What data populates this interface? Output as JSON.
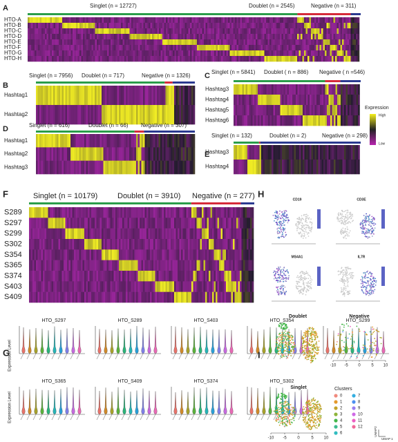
{
  "panels": [
    {
      "label": "A",
      "groups": [
        "Singlet (n = 12727)",
        "Doublet (n = 2545)",
        "Negative (n = 311)"
      ],
      "rows": [
        "HTO-A",
        "HTO-B",
        "HTO-C",
        "HTO-D",
        "HTO-E",
        "HTO-F",
        "HTO-G",
        "HTO-H"
      ]
    },
    {
      "label": "B",
      "groups": [
        "Singlet (n = 7956)",
        "Doublet (n = 717)",
        "Negative (n = 1326)"
      ],
      "rows": [
        "Hashtag1",
        "Hashtag2"
      ]
    },
    {
      "label": "C",
      "groups": [
        "Singlet (n = 5841)",
        "Doublet ( n = 886)",
        "Negative ( n =546)"
      ],
      "rows": [
        "Hashtag3",
        "Hashtag4",
        "Hashtag5",
        "Hashtag6"
      ]
    },
    {
      "label": "D",
      "groups": [
        "Singlet (n = 616)",
        "Doublet (n = 66)",
        "Negative (n = 307)"
      ],
      "rows": [
        "Hashtag1",
        "Hashtag2",
        "Hashtag3"
      ]
    },
    {
      "label": "E",
      "groups": [
        "Singlet (n = 132)",
        "Doublet (n = 2)",
        "Negative (n = 298)"
      ],
      "rows": [
        "Hashtag3",
        "Hashtag4"
      ]
    },
    {
      "label": "F",
      "groups": [
        "Singlet (n = 10179)",
        "Doublet (n = 3910)",
        "Negative (n = 277)"
      ],
      "rows": [
        "S289",
        "S297",
        "S299",
        "S302",
        "S354",
        "S365",
        "S374",
        "S403",
        "S409"
      ]
    }
  ],
  "legend": {
    "title": "Expression",
    "high": "High",
    "low": "Low"
  },
  "violins": {
    "label": "G",
    "y_label": "Expression Level",
    "titles": [
      "HTO_S297",
      "HTO_S289",
      "HTO_S403",
      "HTO_S354",
      "HTO_S299",
      "HTO_S365",
      "HTO_S409",
      "HTO_S374",
      "HTO_S302"
    ]
  },
  "features": {
    "label": "H",
    "genes": [
      "CD19",
      "CD3E",
      "MS4A1",
      "IL7R"
    ]
  },
  "umap": {
    "label": "I",
    "titles": [
      "Doublet",
      "Negative",
      "Singlet"
    ],
    "ticks": [
      -10,
      -5,
      0,
      5,
      10
    ],
    "legend_title": "Clusters",
    "clusters": [
      0,
      1,
      2,
      3,
      4,
      5,
      6,
      7,
      8,
      9,
      10,
      11,
      12
    ],
    "x_label": "UMAP 1",
    "y_label": "UMAP2"
  }
}
